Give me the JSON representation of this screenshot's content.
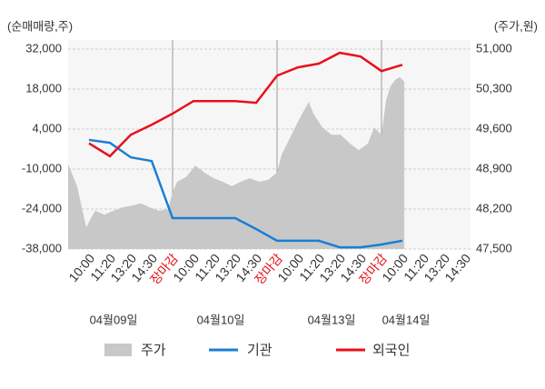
{
  "chart_data": {
    "type": "line",
    "y_label": "(순매매량,주)",
    "y2_label": "(주가,원)",
    "categories": [
      "10:00",
      "11:20",
      "13:20",
      "14:30",
      "장마감",
      "10:00",
      "11:20",
      "13:20",
      "14:30",
      "장마감",
      "10:00",
      "11:20",
      "13:20",
      "14:30",
      "장마감",
      "10:00",
      "11:20",
      "13:20",
      "14:30"
    ],
    "dates": [
      "04월09일",
      "04월10일",
      "04월13일",
      "04월14일"
    ],
    "ylim": [
      -38000,
      32000
    ],
    "yticks": [
      {
        "value": -38000,
        "label": "-38,000"
      },
      {
        "value": -24000,
        "label": "-24,000"
      },
      {
        "value": -10000,
        "label": "-10,000"
      },
      {
        "value": 4000,
        "label": "4,000"
      },
      {
        "value": 18000,
        "label": "18,000"
      },
      {
        "value": 32000,
        "label": "32,000"
      }
    ],
    "y2lim": [
      47500,
      51000
    ],
    "y2ticks": [
      {
        "value": 47500,
        "label": "47,500"
      },
      {
        "value": 48200,
        "label": "48,200"
      },
      {
        "value": 48900,
        "label": "48,900"
      },
      {
        "value": 49600,
        "label": "49,600"
      },
      {
        "value": 50300,
        "label": "50,300"
      },
      {
        "value": 51000,
        "label": "51,000"
      }
    ],
    "grid": true,
    "series": [
      {
        "name": "주가",
        "type": "area",
        "axis": "y2",
        "color": "#c8c8c8",
        "x": [
          -1,
          -0.57,
          -0.13,
          0.09,
          0.3,
          0.74,
          1.17,
          1.61,
          2.04,
          2.48,
          2.91,
          3.35,
          3.78,
          4,
          4.22,
          4.65,
          5.09,
          5.52,
          5.96,
          6.39,
          6.83,
          7.26,
          7.7,
          8.13,
          8.57,
          9,
          9.22,
          9.65,
          10.09,
          10.52,
          10.74,
          11.17,
          11.61,
          12.04,
          12.48,
          12.91,
          13.35,
          13.65,
          14,
          14.22,
          14.43,
          14.65,
          14.87,
          15.09
        ],
        "values": [
          48990,
          48600,
          47880,
          48040,
          48170,
          48100,
          48170,
          48230,
          48260,
          48300,
          48230,
          48170,
          48200,
          48490,
          48680,
          48760,
          48960,
          48840,
          48740,
          48680,
          48600,
          48680,
          48740,
          48680,
          48710,
          48840,
          49150,
          49470,
          49790,
          50080,
          49870,
          49630,
          49500,
          49500,
          49350,
          49230,
          49350,
          49630,
          49500,
          50110,
          50350,
          50460,
          50510,
          50430
        ]
      },
      {
        "name": "기관",
        "color": "#1a7fd4",
        "values": [
          200,
          -800,
          -5900,
          -7200,
          -27200,
          -27200,
          -27200,
          -27200,
          -31000,
          -35100,
          -35100,
          -35100,
          -37400,
          -37400,
          -36400,
          -35100,
          null,
          null,
          null
        ]
      },
      {
        "name": "외국인",
        "color": "#e8101a",
        "values": [
          -1000,
          -5500,
          2000,
          5500,
          9400,
          13800,
          13800,
          13800,
          13200,
          22700,
          25600,
          26900,
          30700,
          29400,
          24300,
          26500,
          null,
          null,
          null
        ]
      }
    ]
  }
}
